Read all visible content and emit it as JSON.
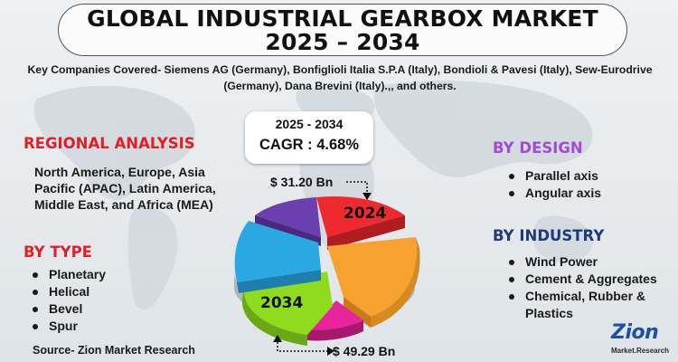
{
  "title": {
    "line1": "GLOBAL INDUSTRIAL GEARBOX MARKET",
    "line2": "2025 – 2034"
  },
  "companies_text": "Key Companies Covered- Siemens AG (Germany), Bonfiglioli Italia S.P.A (Italy), Bondioli & Pavesi (Italy), Sew-Eurodrive (Germany), Dana Brevini (Italy).,, and others.",
  "cagr": {
    "period": "2025 - 2034",
    "value": "CAGR : 4.68%"
  },
  "regional": {
    "heading": "REGIONAL ANALYSIS",
    "text": "North America, Europe, Asia Pacific (APAC), Latin America, Middle East, and Africa (MEA)"
  },
  "by_type": {
    "heading": "BY TYPE",
    "items": [
      "Planetary",
      "Helical",
      "Bevel",
      "Spur"
    ]
  },
  "by_design": {
    "heading": "BY DESIGN",
    "items": [
      "Parallel axis",
      "Angular axis"
    ]
  },
  "by_industry": {
    "heading": "BY INDUSTRY",
    "items": [
      "Wind Power",
      "Cement & Aggregates",
      "Chemical, Rubber &",
      "Plastics"
    ]
  },
  "pie": {
    "label_2024": "2024",
    "label_2034": "2034",
    "value_2024": "$ 31.20 Bn",
    "value_2034": "$ 49.29 Bn",
    "colors": {
      "red": "#ee2a2f",
      "orange": "#f7a12e",
      "pink": "#e8249a",
      "green": "#8fdc1f",
      "blue": "#2aa8e2",
      "purple": "#6b3fb0"
    }
  },
  "source": "Source- Zion Market Research",
  "logo": {
    "main": "Zion",
    "sub": "Market.Research"
  }
}
